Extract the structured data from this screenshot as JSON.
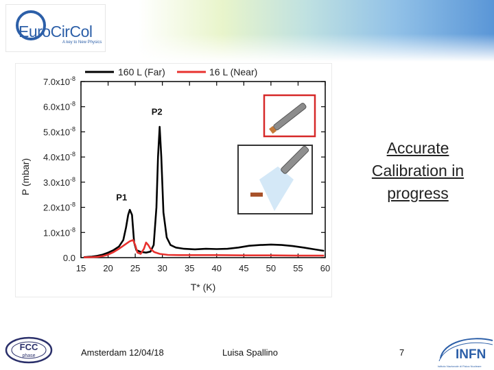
{
  "logo": {
    "name": "EuroCirCol",
    "tagline": "A key to New Physics"
  },
  "chart_data": {
    "type": "line",
    "xlabel": "T* (K)",
    "ylabel": "P (mbar)",
    "xlim": [
      15,
      60
    ],
    "ylim": [
      0,
      7e-08
    ],
    "x_ticks": [
      15,
      20,
      25,
      30,
      35,
      40,
      45,
      50,
      55,
      60
    ],
    "x_tick_labels": [
      "15",
      "20",
      "25",
      "30",
      "35",
      "40",
      "45",
      "50",
      "55",
      "60"
    ],
    "y_ticks": [
      0,
      1e-08,
      2e-08,
      3e-08,
      4e-08,
      5e-08,
      6e-08,
      7e-08
    ],
    "y_tick_labels": [
      {
        "mant": "0.0",
        "exp": ""
      },
      {
        "mant": "1.0x10",
        "exp": "-8"
      },
      {
        "mant": "2.0x10",
        "exp": "-8"
      },
      {
        "mant": "3.0x10",
        "exp": "-8"
      },
      {
        "mant": "4.0x10",
        "exp": "-8"
      },
      {
        "mant": "5.0x10",
        "exp": "-8"
      },
      {
        "mant": "6.0x10",
        "exp": "-8"
      },
      {
        "mant": "7.0x10",
        "exp": "-8"
      }
    ],
    "legend_position": "top",
    "series": [
      {
        "name": "160 L (Far)",
        "color": "#000000",
        "points": [
          [
            15.5,
            2e-10
          ],
          [
            17,
            4e-10
          ],
          [
            18,
            7e-10
          ],
          [
            19,
            1.2e-09
          ],
          [
            20,
            2e-09
          ],
          [
            21,
            3e-09
          ],
          [
            22,
            4.4e-09
          ],
          [
            22.8,
            7e-09
          ],
          [
            23.3,
            1.2e-08
          ],
          [
            23.7,
            1.7e-08
          ],
          [
            24.0,
            1.9e-08
          ],
          [
            24.4,
            1.7e-08
          ],
          [
            24.8,
            6e-09
          ],
          [
            25.2,
            3e-09
          ],
          [
            26,
            2.3e-09
          ],
          [
            27,
            2e-09
          ],
          [
            27.8,
            2.4e-09
          ],
          [
            28.4,
            5e-09
          ],
          [
            28.9,
            2e-08
          ],
          [
            29.2,
            4e-08
          ],
          [
            29.5,
            5.2e-08
          ],
          [
            29.8,
            4e-08
          ],
          [
            30.2,
            1.8e-08
          ],
          [
            30.8,
            8e-09
          ],
          [
            31.5,
            5e-09
          ],
          [
            32.5,
            4e-09
          ],
          [
            34,
            3.5e-09
          ],
          [
            36,
            3.3e-09
          ],
          [
            38,
            3.5e-09
          ],
          [
            40,
            3.4e-09
          ],
          [
            42,
            3.5e-09
          ],
          [
            44,
            4e-09
          ],
          [
            46,
            4.7e-09
          ],
          [
            48,
            5e-09
          ],
          [
            50,
            5.2e-09
          ],
          [
            52,
            5e-09
          ],
          [
            54,
            4.6e-09
          ],
          [
            56,
            4e-09
          ],
          [
            58,
            3.3e-09
          ],
          [
            59.8,
            2.7e-09
          ]
        ]
      },
      {
        "name": "16 L (Near)",
        "color": "#e8312e",
        "points": [
          [
            15.5,
            1e-10
          ],
          [
            17,
            2e-10
          ],
          [
            18,
            3e-10
          ],
          [
            19,
            6e-10
          ],
          [
            20,
            1.2e-09
          ],
          [
            21,
            2.2e-09
          ],
          [
            22,
            3.5e-09
          ],
          [
            23,
            5e-09
          ],
          [
            24,
            6.5e-09
          ],
          [
            24.6,
            7e-09
          ],
          [
            25.0,
            5e-09
          ],
          [
            25.4,
            2e-09
          ],
          [
            26,
            1.5e-09
          ],
          [
            26.6,
            3.5e-09
          ],
          [
            27,
            6e-09
          ],
          [
            27.4,
            5e-09
          ],
          [
            27.8,
            3.5e-09
          ],
          [
            28.5,
            2.2e-09
          ],
          [
            29.5,
            1.5e-09
          ],
          [
            31,
            1.1e-09
          ],
          [
            33,
            1e-09
          ],
          [
            36,
            1e-09
          ],
          [
            40,
            1e-09
          ],
          [
            45,
            9e-10
          ],
          [
            50,
            9e-10
          ],
          [
            55,
            8e-10
          ],
          [
            59.8,
            8e-10
          ]
        ]
      }
    ],
    "annotations": [
      {
        "text": "P2",
        "x": 29.5,
        "y": 5.4e-08
      },
      {
        "text": "P1",
        "x": 23.0,
        "y": 2e-08
      }
    ]
  },
  "callout": {
    "lines": [
      "Accurate",
      "Calibration in",
      "progress"
    ]
  },
  "footer": {
    "location_date": "Amsterdam 12/04/18",
    "author": "Luisa Spallino",
    "page_number": "7"
  },
  "fcc_logo": {
    "title": "FCC",
    "subtitle": "phase"
  },
  "infn_logo": {
    "title": "INFN",
    "subtitle": "Istituto Nazionale di Fisica Nucleare"
  },
  "colors": {
    "accent_blue": "#2c5fa8",
    "inset_red": "#d62828",
    "beam": "#cfe6f6",
    "target": "#a8522a"
  }
}
